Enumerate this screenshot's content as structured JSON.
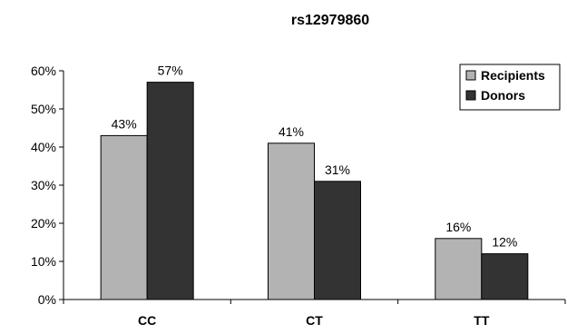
{
  "chart_data": {
    "type": "bar",
    "title": "rs12979860",
    "xlabel": "",
    "ylabel": "",
    "categories": [
      "CC",
      "CT",
      "TT"
    ],
    "series": [
      {
        "name": "Recipients",
        "values": [
          43,
          41,
          16
        ],
        "labels": [
          "43%",
          "41%",
          "16%"
        ],
        "color": "#b3b3b3"
      },
      {
        "name": "Donors",
        "values": [
          57,
          31,
          12
        ],
        "labels": [
          "57%",
          "31%",
          "12%"
        ],
        "color": "#333333"
      }
    ],
    "ylim": [
      0,
      60
    ],
    "yticks": [
      0,
      10,
      20,
      30,
      40,
      50,
      60
    ],
    "ytick_labels": [
      "0%",
      "10%",
      "20%",
      "30%",
      "40%",
      "50%",
      "60%"
    ],
    "grid": false,
    "legend_position": "top-right"
  }
}
